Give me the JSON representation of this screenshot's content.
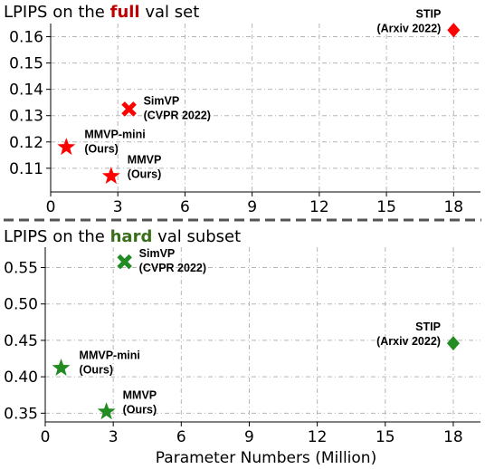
{
  "chart_data": [
    {
      "type": "scatter",
      "title_prefix": "LPIPS on the ",
      "title_emphasis": "full",
      "title_suffix": " val set",
      "emphasis_color": "#c00000",
      "marker_color": "#ff0000",
      "xlabel": "",
      "ylabel": "",
      "xlim": [
        0,
        19.2
      ],
      "ylim": [
        0.101,
        0.165
      ],
      "xticks": [
        0,
        3,
        6,
        9,
        12,
        15,
        18
      ],
      "yticks": [
        0.11,
        0.12,
        0.13,
        0.14,
        0.15,
        0.16
      ],
      "yformat": 2,
      "grid": true,
      "points": [
        {
          "label": "MMVP-mini",
          "sublabel": "(Ours)",
          "x": 0.7,
          "y": 0.118,
          "marker": "star"
        },
        {
          "label": "MMVP",
          "sublabel": "(Ours)",
          "x": 2.7,
          "y": 0.107,
          "marker": "star"
        },
        {
          "label": "SimVP",
          "sublabel": "(CVPR 2022)",
          "x": 3.5,
          "y": 0.1325,
          "marker": "x"
        },
        {
          "label": "STIP",
          "sublabel": "(Arxiv 2022)",
          "x": 18.0,
          "y": 0.1625,
          "marker": "diamond"
        }
      ]
    },
    {
      "type": "scatter",
      "title_prefix": "LPIPS on the ",
      "title_emphasis": "hard",
      "title_suffix": " val subset",
      "emphasis_color": "#3a6e1a",
      "marker_color": "#228b22",
      "xlabel": "Parameter Numbers (Million)",
      "ylabel": "",
      "xlim": [
        0,
        19.2
      ],
      "ylim": [
        0.338,
        0.578
      ],
      "xticks": [
        0,
        3,
        6,
        9,
        12,
        15,
        18
      ],
      "yticks": [
        0.35,
        0.4,
        0.45,
        0.5,
        0.55
      ],
      "yformat": 2,
      "grid": true,
      "points": [
        {
          "label": "MMVP-mini",
          "sublabel": "(Ours)",
          "x": 0.7,
          "y": 0.412,
          "marker": "star"
        },
        {
          "label": "MMVP",
          "sublabel": "(Ours)",
          "x": 2.7,
          "y": 0.352,
          "marker": "star"
        },
        {
          "label": "SimVP",
          "sublabel": "(CVPR 2022)",
          "x": 3.5,
          "y": 0.558,
          "marker": "x"
        },
        {
          "label": "STIP",
          "sublabel": "(Arxiv 2022)",
          "x": 18.0,
          "y": 0.446,
          "marker": "diamond"
        }
      ]
    }
  ]
}
